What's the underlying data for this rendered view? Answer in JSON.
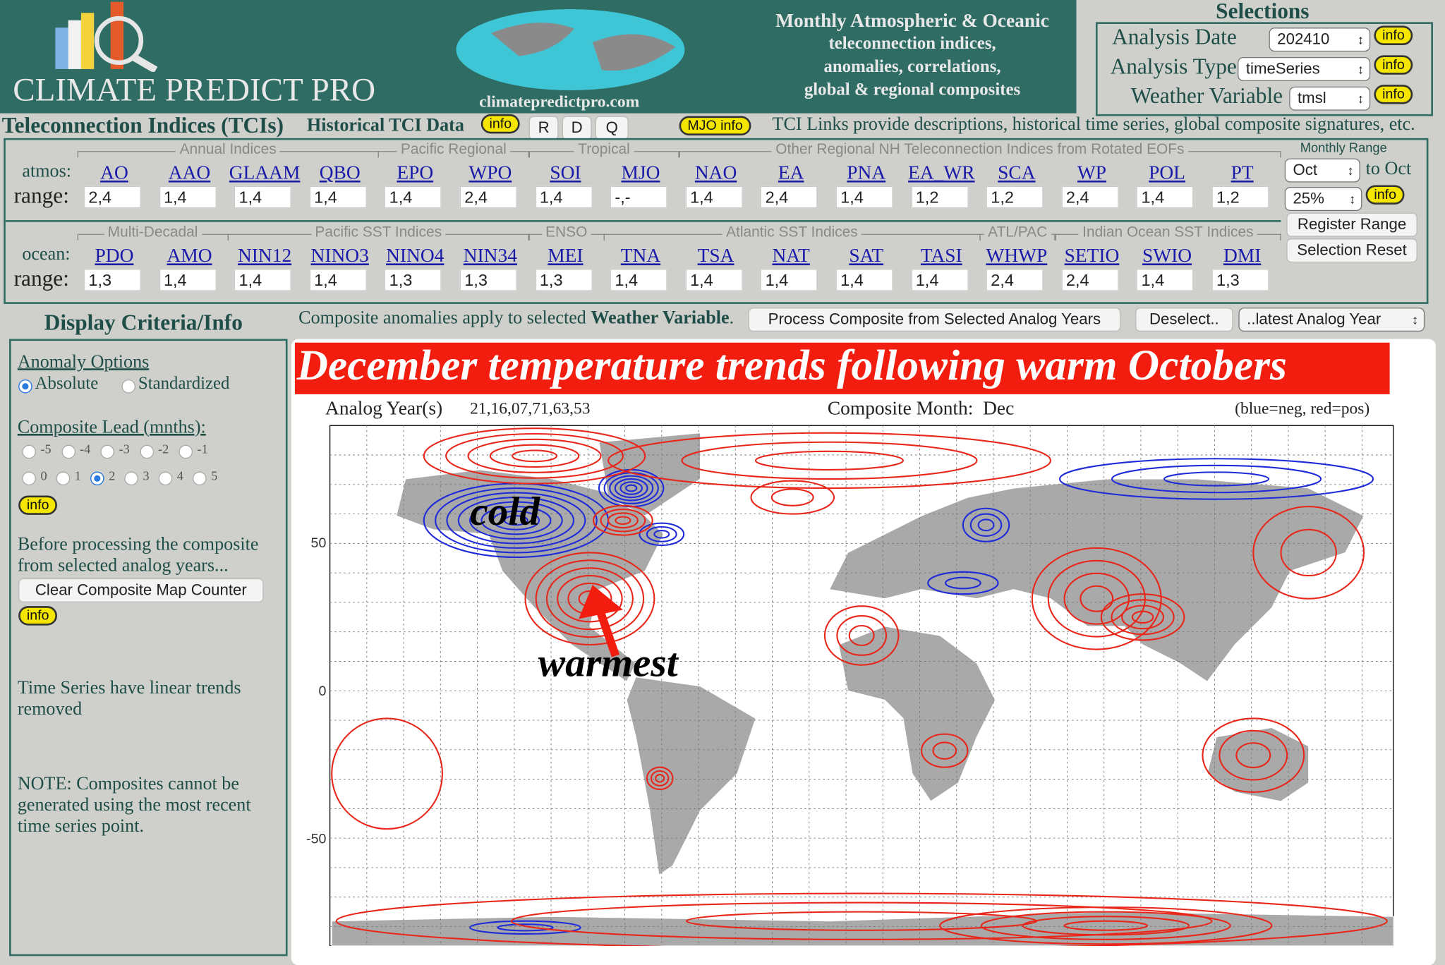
{
  "header": {
    "brand": "CLIMATE PREDICT PRO",
    "site": "climatepredictpro.com",
    "tagline": [
      "Monthly Atmospheric & Oceanic",
      "teleconnection indices,",
      "anomalies, correlations,",
      "global & regional composites"
    ],
    "selections": {
      "title": "Selections",
      "rows": [
        {
          "label": "Analysis Date",
          "value": "202410",
          "info": "info"
        },
        {
          "label": "Analysis Type",
          "value": "timeSeries",
          "info": "info"
        },
        {
          "label": "Weather Variable",
          "value": "tmsl",
          "info": "info"
        }
      ]
    }
  },
  "tci_bar": {
    "title": "Teleconnection Indices (TCIs)",
    "historical": "Historical TCI Data",
    "info": "info",
    "buttons": [
      "R",
      "D",
      "Q"
    ],
    "mjo": "MJO info",
    "links_text": "TCI Links provide descriptions, historical time series, global composite signatures, etc."
  },
  "atmos": {
    "row_label": "atmos:",
    "range_label": "range:",
    "groups": [
      {
        "label": "Annual Indices",
        "indices": [
          {
            "name": "AO",
            "range": "2,4"
          },
          {
            "name": "AAO",
            "range": "1,4"
          },
          {
            "name": "GLAAM",
            "range": "1,4"
          },
          {
            "name": "QBO",
            "range": "1,4"
          }
        ]
      },
      {
        "label": "Pacific Regional",
        "indices": [
          {
            "name": "EPO",
            "range": "1,4"
          },
          {
            "name": "WPO",
            "range": "2,4"
          }
        ]
      },
      {
        "label": "Tropical",
        "indices": [
          {
            "name": "SOI",
            "range": "1,4"
          },
          {
            "name": "MJO",
            "range": "-,-"
          }
        ]
      },
      {
        "label": "Other Regional NH Teleconnection Indices from Rotated EOFs",
        "indices": [
          {
            "name": "NAO",
            "range": "1,4"
          },
          {
            "name": "EA",
            "range": "2,4"
          },
          {
            "name": "PNA",
            "range": "1,4"
          },
          {
            "name": "EA_WR",
            "range": "1,2"
          },
          {
            "name": "SCA",
            "range": "1,2"
          },
          {
            "name": "WP",
            "range": "2,4"
          },
          {
            "name": "POL",
            "range": "1,4"
          },
          {
            "name": "PT",
            "range": "1,2"
          }
        ]
      }
    ]
  },
  "ocean": {
    "row_label": "ocean:",
    "range_label": "range:",
    "groups": [
      {
        "label": "Multi-Decadal",
        "indices": [
          {
            "name": "PDO",
            "range": "1,3"
          },
          {
            "name": "AMO",
            "range": "1,4"
          }
        ]
      },
      {
        "label": "Pacific SST Indices",
        "indices": [
          {
            "name": "NIN12",
            "range": "1,4"
          },
          {
            "name": "NINO3",
            "range": "1,4"
          },
          {
            "name": "NINO4",
            "range": "1,3"
          },
          {
            "name": "NIN34",
            "range": "1,3"
          }
        ]
      },
      {
        "label": "ENSO",
        "indices": [
          {
            "name": "MEI",
            "range": "1,3"
          }
        ]
      },
      {
        "label": "Atlantic SST Indices",
        "indices": [
          {
            "name": "TNA",
            "range": "1,4"
          },
          {
            "name": "TSA",
            "range": "1,4"
          },
          {
            "name": "NAT",
            "range": "1,4"
          },
          {
            "name": "SAT",
            "range": "1,4"
          },
          {
            "name": "TASI",
            "range": "1,4"
          }
        ]
      },
      {
        "label": "ATL/PAC",
        "indices": [
          {
            "name": "WHWP",
            "range": "2,4"
          }
        ]
      },
      {
        "label": "Indian Ocean SST Indices",
        "indices": [
          {
            "name": "SETIO",
            "range": "2,4"
          },
          {
            "name": "SWIO",
            "range": "1,4"
          },
          {
            "name": "DMI",
            "range": "1,3"
          }
        ]
      }
    ]
  },
  "monthly_range": {
    "title": "Monthly Range",
    "from": "Oct",
    "to_label": "to Oct",
    "percent": "25%",
    "info": "info",
    "buttons": [
      "Register Range",
      "Selection Reset"
    ]
  },
  "display": {
    "title": "Display Criteria/Info",
    "anomaly_title": "Anomaly Options",
    "anomaly_options": [
      {
        "label": "Absolute",
        "checked": true
      },
      {
        "label": "Standardized",
        "checked": false
      }
    ],
    "lead_title": "Composite Lead (mnths):",
    "leads": [
      {
        "label": "-5",
        "checked": false
      },
      {
        "label": "-4",
        "checked": false
      },
      {
        "label": "-3",
        "checked": false
      },
      {
        "label": "-2",
        "checked": false
      },
      {
        "label": "-1",
        "checked": false
      },
      {
        "label": "0",
        "checked": false
      },
      {
        "label": "1",
        "checked": false
      },
      {
        "label": "2",
        "checked": true
      },
      {
        "label": "3",
        "checked": false
      },
      {
        "label": "4",
        "checked": false
      },
      {
        "label": "5",
        "checked": false
      }
    ],
    "lead_info": "info",
    "before_text": "Before processing the composite from selected analog years...",
    "clear_button": "Clear Composite Map Counter",
    "clear_info": "info",
    "trend_text": "Time Series have linear trends removed",
    "note_text": "NOTE: Composites cannot be generated using the most recent time series point."
  },
  "composite_bar": {
    "text": "Composite anomalies apply to selected ",
    "bold": "Weather Variable",
    "end": ".",
    "process_button": "Process Composite from Selected Analog Years",
    "deselect_button": "Deselect..",
    "analog_select": "..latest Analog Year"
  },
  "map": {
    "title": "December temperature trends following warm Octobers",
    "analog_label": "Analog Year(s)",
    "analog_years": "21,16,07,71,63,53",
    "month_label": "Composite Month:",
    "month": "Dec",
    "legend": "(blue=neg, red=pos)",
    "yticks": [
      50,
      0,
      -50
    ],
    "annotations": {
      "cold": "cold",
      "warmest": "warmest"
    }
  }
}
